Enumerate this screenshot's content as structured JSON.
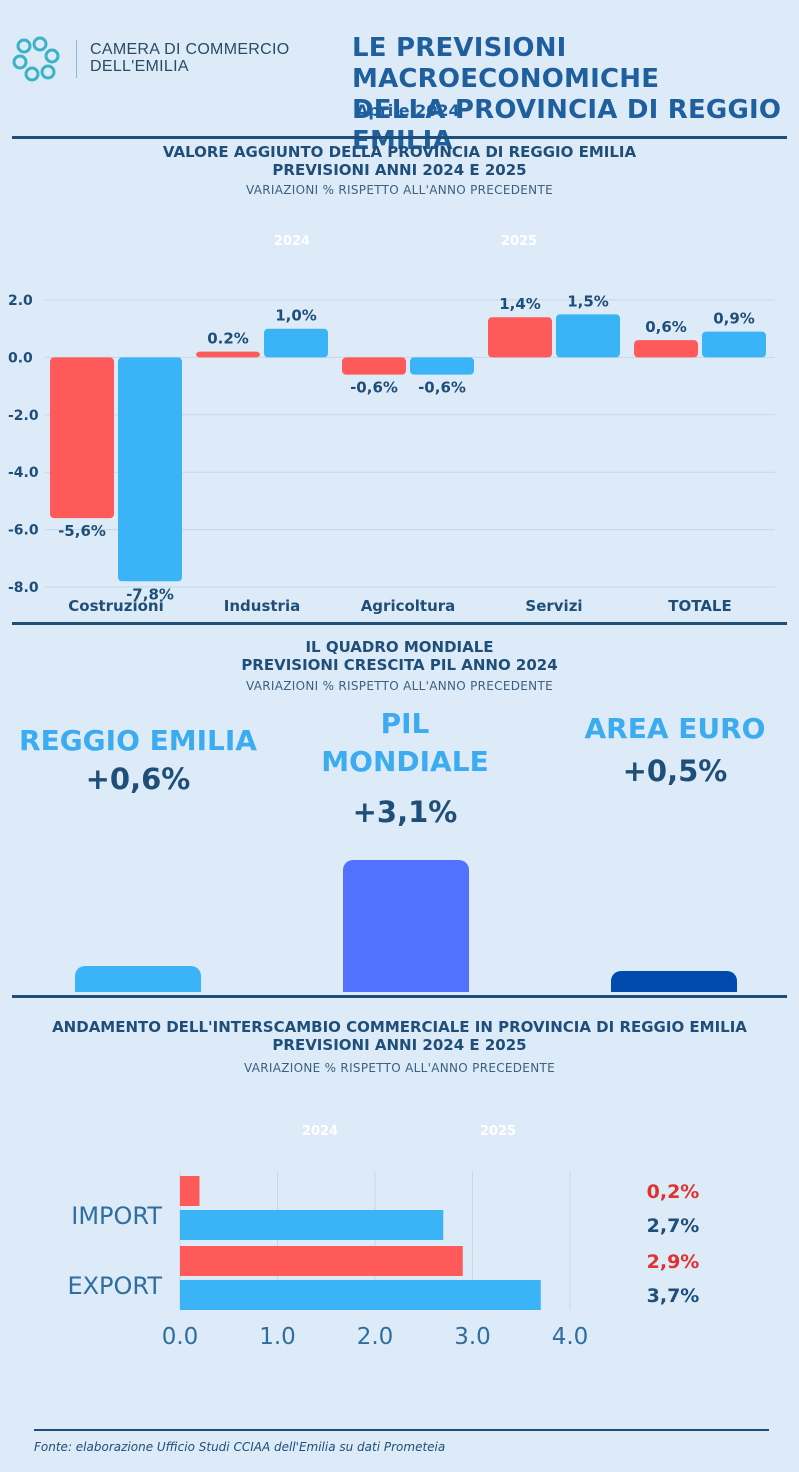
{
  "header": {
    "org_line1": "CAMERA DI COMMERCIO",
    "org_line2": "DELL'EMILIA",
    "title_line1": "LE PREVISIONI MACROECONOMICHE",
    "title_line2": "DELLA PROVINCIA DI REGGIO EMILIA",
    "date": "Aprile 2024"
  },
  "section1": {
    "title_line1": "VALORE AGGIUNTO DELLA PROVINCIA DI REGGIO EMILIA",
    "title_line2": "PREVISIONI ANNI 2024 E 2025",
    "subtitle": "VARIAZIONI % RISPETTO ALL'ANNO PRECEDENTE"
  },
  "section2": {
    "title_line1": "IL QUADRO MONDIALE",
    "title_line2": "PREVISIONI CRESCITA PIL ANNO 2024",
    "subtitle": "VARIAZIONI % RISPETTO ALL'ANNO PRECEDENTE"
  },
  "section3": {
    "title_line1": "ANDAMENTO DELL'INTERSCAMBIO COMMERCIALE IN PROVINCIA DI REGGIO EMILIA",
    "title_line2": "PREVISIONI ANNI 2024 E 2025",
    "subtitle": "VARIAZIONE % RISPETTO ALL'ANNO PRECEDENTE"
  },
  "footer": "Fonte: elaborazione Ufficio Studi CCIAA dell'Emilia su dati Prometeia",
  "colors": {
    "series_2024": "#ff5a5a",
    "series_2025": "#3ab4f7",
    "world_re": "#3ab4f7",
    "world_pil": "#5271ff",
    "world_euro": "#004aad",
    "dark_blue": "#1f4e79",
    "red_label": "#e03131"
  },
  "chart_data": [
    {
      "type": "bar",
      "legend": [
        "2024",
        "2025"
      ],
      "categories": [
        "Costruzioni",
        "Industria",
        "Agricoltura",
        "Servizi",
        "TOTALE"
      ],
      "series": [
        {
          "name": "2024",
          "values": [
            -5.6,
            0.2,
            -0.6,
            1.4,
            0.6
          ],
          "labels": [
            "-5,6%",
            "0.2%",
            "-0,6%",
            "1,4%",
            "0,6%"
          ]
        },
        {
          "name": "2025",
          "values": [
            -7.8,
            1.0,
            -0.6,
            1.5,
            0.9
          ],
          "labels": [
            "-7,8%",
            "1,0%",
            "-0,6%",
            "1,5%",
            "0,9%"
          ]
        }
      ],
      "yticks": [
        "2.0",
        "0.0",
        "-2.0",
        "-4.0",
        "-6.0",
        "-8.0"
      ],
      "ylim": [
        -8,
        2
      ]
    },
    {
      "type": "bar",
      "categories": [
        "REGGIO EMILIA",
        "PIL MONDIALE",
        "AREA EURO"
      ],
      "values": [
        0.6,
        3.1,
        0.5
      ],
      "labels": [
        "+0,6%",
        "+3,1%",
        "+0,5%"
      ]
    },
    {
      "type": "bar",
      "orientation": "horizontal",
      "legend": [
        "2024",
        "2025"
      ],
      "categories": [
        "IMPORT",
        "EXPORT"
      ],
      "series": [
        {
          "name": "2024",
          "values": [
            0.2,
            2.9
          ],
          "labels": [
            "0,2%",
            "2,9%"
          ]
        },
        {
          "name": "2025",
          "values": [
            2.7,
            3.7
          ],
          "labels": [
            "2,7%",
            "3,7%"
          ]
        }
      ],
      "xticks": [
        "0.0",
        "1.0",
        "2.0",
        "3.0",
        "4.0"
      ],
      "xlim": [
        0,
        4
      ]
    }
  ]
}
